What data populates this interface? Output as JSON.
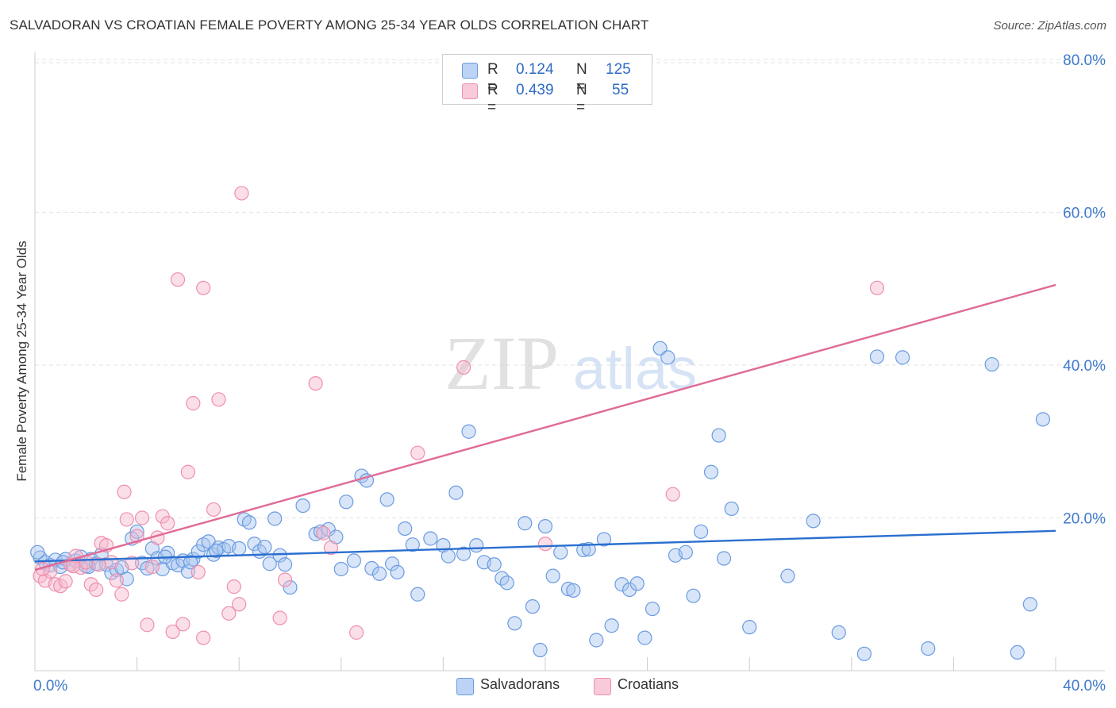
{
  "title": "SALVADORAN VS CROATIAN FEMALE POVERTY AMONG 25-34 YEAR OLDS CORRELATION CHART",
  "source": "Source: ZipAtlas.com",
  "watermark": {
    "zip": "ZIP",
    "atlas": "atlas"
  },
  "legend": {
    "salvadoran": {
      "r_label": "R =",
      "r_value": "0.124",
      "n_label": "N =",
      "n_value": "125"
    },
    "croatian": {
      "r_label": "R =",
      "r_value": "0.439",
      "n_label": "N =",
      "n_value": "55"
    }
  },
  "bottom_legend": {
    "salvadorans": "Salvadorans",
    "croatians": "Croatians"
  },
  "colors": {
    "salvadoran_fill": "#a9c6f0",
    "salvadoran_stroke": "#6a9be0",
    "salvadoran_line": "#2a6fcf",
    "croatian_fill": "#f7b9cc",
    "croatian_stroke": "#ee8fae",
    "croatian_line": "#e06a97",
    "tick_label": "#3f7acc",
    "grid": "#e3e3e3"
  },
  "chart_data": {
    "type": "scatter",
    "ylabel": "Female Poverty Among 25-34 Year Olds",
    "xlim": [
      0,
      40
    ],
    "ylim": [
      0,
      80
    ],
    "x_tick_labels": [
      {
        "value": 0,
        "label": "0.0%"
      },
      {
        "value": 40,
        "label": "40.0%"
      }
    ],
    "y_tick_labels": [
      {
        "value": 20,
        "label": "20.0%"
      },
      {
        "value": 40,
        "label": "40.0%"
      },
      {
        "value": 60,
        "label": "60.0%"
      },
      {
        "value": 80,
        "label": "80.0%"
      }
    ],
    "grid": true,
    "series": [
      {
        "name": "Salvadorans",
        "trend": {
          "x": [
            0,
            40
          ],
          "y": [
            14.3,
            18.3
          ]
        },
        "points": [
          [
            0.2,
            14.8
          ],
          [
            0.4,
            14.2
          ],
          [
            0.6,
            13.8
          ],
          [
            0.8,
            14.5
          ],
          [
            1.0,
            13.6
          ],
          [
            1.2,
            14.6
          ],
          [
            1.4,
            13.9
          ],
          [
            1.6,
            14.4
          ],
          [
            1.8,
            14.9
          ],
          [
            2.0,
            13.7
          ],
          [
            2.2,
            14.6
          ],
          [
            2.4,
            14.0
          ],
          [
            2.6,
            15.2
          ],
          [
            2.8,
            13.9
          ],
          [
            3.0,
            12.8
          ],
          [
            3.2,
            13.2
          ],
          [
            3.4,
            13.5
          ],
          [
            3.6,
            12.0
          ],
          [
            3.8,
            17.3
          ],
          [
            4.0,
            18.2
          ],
          [
            4.2,
            14.1
          ],
          [
            4.4,
            13.4
          ],
          [
            4.6,
            16.0
          ],
          [
            4.8,
            14.7
          ],
          [
            5.0,
            13.3
          ],
          [
            5.2,
            15.4
          ],
          [
            5.4,
            14.1
          ],
          [
            5.6,
            13.8
          ],
          [
            5.8,
            14.4
          ],
          [
            6.0,
            13.0
          ],
          [
            6.2,
            14.6
          ],
          [
            6.4,
            15.6
          ],
          [
            6.6,
            16.5
          ],
          [
            6.8,
            16.9
          ],
          [
            7.0,
            15.2
          ],
          [
            7.2,
            16.1
          ],
          [
            7.4,
            15.9
          ],
          [
            7.6,
            16.3
          ],
          [
            8.0,
            16.0
          ],
          [
            8.2,
            19.8
          ],
          [
            8.4,
            19.4
          ],
          [
            8.6,
            16.6
          ],
          [
            8.8,
            15.6
          ],
          [
            9.0,
            16.2
          ],
          [
            9.2,
            14.0
          ],
          [
            9.4,
            19.9
          ],
          [
            9.6,
            15.1
          ],
          [
            9.8,
            13.9
          ],
          [
            10.0,
            10.9
          ],
          [
            10.5,
            21.6
          ],
          [
            11.0,
            17.9
          ],
          [
            11.2,
            18.2
          ],
          [
            11.5,
            18.5
          ],
          [
            11.8,
            17.5
          ],
          [
            12.0,
            13.3
          ],
          [
            12.2,
            22.1
          ],
          [
            12.5,
            14.4
          ],
          [
            12.8,
            25.5
          ],
          [
            13.0,
            24.9
          ],
          [
            13.2,
            13.4
          ],
          [
            13.5,
            12.7
          ],
          [
            13.8,
            22.4
          ],
          [
            14.0,
            14.0
          ],
          [
            14.2,
            12.9
          ],
          [
            14.5,
            18.6
          ],
          [
            14.8,
            16.5
          ],
          [
            15.0,
            10.0
          ],
          [
            15.5,
            17.3
          ],
          [
            16.0,
            16.4
          ],
          [
            16.2,
            15.0
          ],
          [
            16.5,
            23.3
          ],
          [
            16.8,
            15.3
          ],
          [
            17.0,
            31.3
          ],
          [
            17.3,
            16.4
          ],
          [
            17.6,
            14.2
          ],
          [
            18.0,
            13.9
          ],
          [
            18.3,
            12.1
          ],
          [
            18.5,
            11.5
          ],
          [
            18.8,
            6.2
          ],
          [
            19.2,
            19.3
          ],
          [
            19.5,
            8.4
          ],
          [
            19.8,
            2.7
          ],
          [
            20.0,
            18.9
          ],
          [
            20.3,
            12.4
          ],
          [
            20.6,
            15.5
          ],
          [
            20.9,
            10.7
          ],
          [
            21.1,
            10.5
          ],
          [
            21.5,
            15.8
          ],
          [
            21.7,
            15.9
          ],
          [
            22.0,
            4.0
          ],
          [
            22.3,
            17.2
          ],
          [
            22.6,
            5.9
          ],
          [
            23.0,
            11.3
          ],
          [
            23.3,
            10.6
          ],
          [
            23.6,
            11.4
          ],
          [
            23.9,
            4.3
          ],
          [
            24.2,
            8.1
          ],
          [
            24.5,
            42.2
          ],
          [
            24.8,
            41.0
          ],
          [
            25.1,
            15.1
          ],
          [
            25.5,
            15.5
          ],
          [
            25.8,
            9.8
          ],
          [
            26.1,
            18.2
          ],
          [
            26.5,
            26.0
          ],
          [
            26.8,
            30.8
          ],
          [
            27.0,
            14.7
          ],
          [
            27.3,
            21.2
          ],
          [
            28.0,
            5.7
          ],
          [
            29.5,
            12.4
          ],
          [
            30.5,
            19.6
          ],
          [
            31.5,
            5.0
          ],
          [
            32.5,
            2.2
          ],
          [
            33.0,
            41.1
          ],
          [
            34.0,
            41.0
          ],
          [
            35.0,
            2.9
          ],
          [
            37.5,
            40.1
          ],
          [
            38.5,
            2.4
          ],
          [
            39.0,
            8.7
          ],
          [
            39.5,
            32.9
          ],
          [
            0.1,
            15.5
          ],
          [
            1.1,
            14.2
          ],
          [
            2.1,
            13.6
          ],
          [
            5.1,
            14.9
          ],
          [
            6.1,
            14.2
          ],
          [
            7.1,
            15.7
          ]
        ]
      },
      {
        "name": "Croatians",
        "trend": {
          "x": [
            0,
            40
          ],
          "y": [
            13.2,
            50.5
          ]
        },
        "points": [
          [
            0.2,
            12.4
          ],
          [
            0.4,
            11.8
          ],
          [
            0.6,
            13.0
          ],
          [
            0.8,
            11.3
          ],
          [
            1.0,
            11.1
          ],
          [
            1.2,
            11.7
          ],
          [
            1.4,
            13.9
          ],
          [
            1.6,
            15.0
          ],
          [
            1.8,
            13.5
          ],
          [
            2.0,
            14.2
          ],
          [
            2.2,
            11.3
          ],
          [
            2.4,
            10.6
          ],
          [
            2.6,
            16.7
          ],
          [
            2.8,
            16.4
          ],
          [
            3.0,
            14.2
          ],
          [
            3.2,
            11.8
          ],
          [
            3.4,
            10.0
          ],
          [
            3.5,
            23.4
          ],
          [
            3.6,
            19.8
          ],
          [
            3.8,
            14.1
          ],
          [
            4.0,
            17.6
          ],
          [
            4.2,
            20.0
          ],
          [
            4.4,
            6.0
          ],
          [
            4.6,
            13.6
          ],
          [
            4.8,
            17.4
          ],
          [
            5.0,
            20.2
          ],
          [
            5.2,
            19.3
          ],
          [
            5.4,
            5.1
          ],
          [
            5.6,
            51.2
          ],
          [
            5.8,
            6.1
          ],
          [
            6.0,
            26.0
          ],
          [
            6.2,
            35.0
          ],
          [
            6.4,
            12.9
          ],
          [
            6.6,
            4.3
          ],
          [
            6.6,
            50.1
          ],
          [
            7.0,
            21.1
          ],
          [
            7.2,
            35.5
          ],
          [
            7.6,
            7.5
          ],
          [
            7.8,
            11.0
          ],
          [
            8.0,
            8.7
          ],
          [
            8.1,
            62.5
          ],
          [
            9.6,
            6.9
          ],
          [
            9.8,
            11.9
          ],
          [
            11.0,
            37.6
          ],
          [
            11.3,
            18.0
          ],
          [
            11.6,
            16.1
          ],
          [
            12.6,
            5.0
          ],
          [
            15.0,
            28.5
          ],
          [
            16.8,
            39.7
          ],
          [
            20.0,
            16.6
          ],
          [
            25.0,
            23.1
          ],
          [
            33.0,
            50.1
          ],
          [
            0.3,
            13.3
          ],
          [
            1.5,
            13.7
          ],
          [
            2.5,
            13.9
          ]
        ]
      }
    ]
  }
}
